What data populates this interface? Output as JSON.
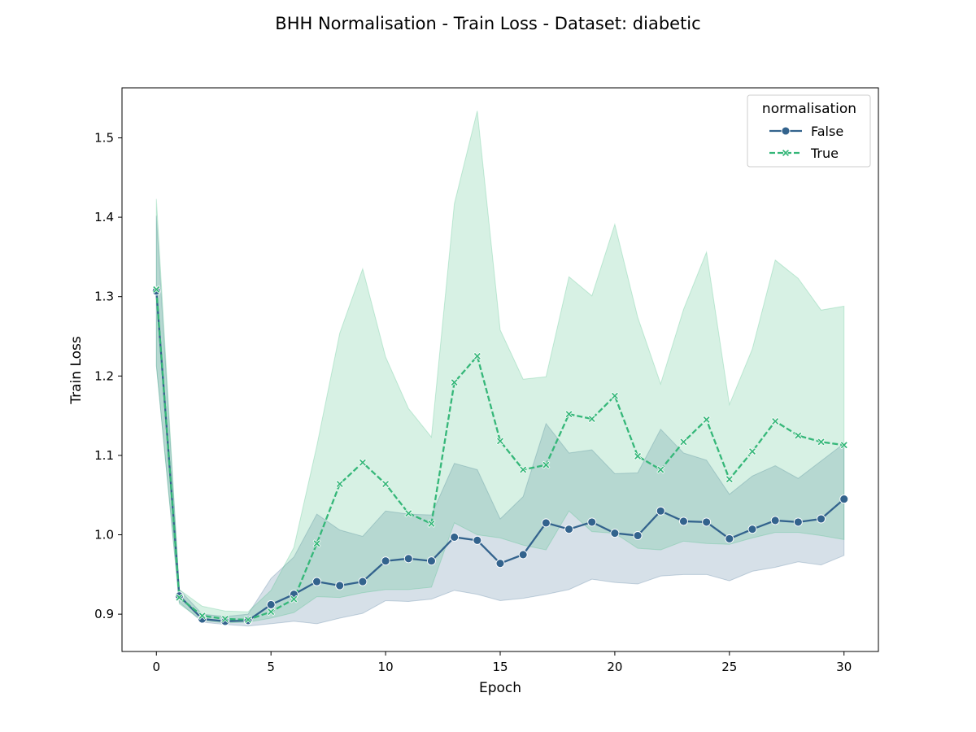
{
  "chart_data": {
    "type": "line",
    "title": "BHH Normalisation - Train Loss - Dataset: diabetic",
    "xlabel": "Epoch",
    "ylabel": "Train Loss",
    "xlim": [
      -1.5,
      31.5
    ],
    "ylim": [
      0.853,
      1.563
    ],
    "xticks": [
      0,
      5,
      10,
      15,
      20,
      25,
      30
    ],
    "yticks": [
      0.9,
      1.0,
      1.1,
      1.2,
      1.3,
      1.4,
      1.5
    ],
    "xtick_labels": [
      "0",
      "5",
      "10",
      "15",
      "20",
      "25",
      "30"
    ],
    "ytick_labels": [
      "0.9",
      "1.0",
      "1.1",
      "1.2",
      "1.3",
      "1.4",
      "1.5"
    ],
    "grid": false,
    "legend": {
      "title": "normalisation",
      "placement": "top-right"
    },
    "x": [
      0,
      1,
      2,
      3,
      4,
      5,
      6,
      7,
      8,
      9,
      10,
      11,
      12,
      13,
      14,
      15,
      16,
      17,
      18,
      19,
      20,
      21,
      22,
      23,
      24,
      25,
      26,
      27,
      28,
      29,
      30
    ],
    "series": [
      {
        "name": "False",
        "color": "#33638d",
        "line_style": "solid",
        "marker": "circle",
        "values": [
          1.307,
          0.923,
          0.894,
          0.891,
          0.892,
          0.912,
          0.925,
          0.941,
          0.936,
          0.941,
          0.967,
          0.97,
          0.967,
          0.997,
          0.993,
          0.964,
          0.975,
          1.015,
          1.007,
          1.016,
          1.002,
          0.999,
          1.03,
          1.017,
          1.016,
          0.995,
          1.007,
          1.018,
          1.016,
          1.02,
          1.045
        ],
        "ci_lower": [
          1.213,
          0.915,
          0.89,
          0.887,
          0.885,
          0.888,
          0.891,
          0.888,
          0.895,
          0.901,
          0.917,
          0.916,
          0.919,
          0.93,
          0.925,
          0.917,
          0.92,
          0.925,
          0.931,
          0.944,
          0.94,
          0.938,
          0.948,
          0.95,
          0.95,
          0.942,
          0.954,
          0.959,
          0.966,
          0.962,
          0.974
        ],
        "ci_upper": [
          1.402,
          0.931,
          0.9,
          0.897,
          0.9,
          0.945,
          0.972,
          1.026,
          1.006,
          0.998,
          1.03,
          1.026,
          1.025,
          1.09,
          1.082,
          1.02,
          1.048,
          1.14,
          1.103,
          1.107,
          1.077,
          1.078,
          1.133,
          1.103,
          1.094,
          1.051,
          1.074,
          1.087,
          1.071,
          1.093,
          1.115
        ],
        "fill_color": "#d7e0e8"
      },
      {
        "name": "True",
        "color": "#35b779",
        "line_style": "dashed",
        "marker": "x",
        "values": [
          1.309,
          0.921,
          0.898,
          0.894,
          0.893,
          0.903,
          0.919,
          0.989,
          1.064,
          1.091,
          1.064,
          1.027,
          1.014,
          1.192,
          1.225,
          1.118,
          1.082,
          1.088,
          1.152,
          1.146,
          1.175,
          1.099,
          1.082,
          1.117,
          1.145,
          1.07,
          1.105,
          1.143,
          1.125,
          1.117,
          1.113
        ],
        "ci_lower": [
          1.213,
          0.913,
          0.892,
          0.889,
          0.89,
          0.895,
          0.902,
          0.922,
          0.921,
          0.927,
          0.931,
          0.931,
          0.934,
          1.015,
          1.0,
          0.996,
          0.987,
          0.981,
          1.03,
          1.004,
          1.002,
          0.983,
          0.981,
          0.992,
          0.989,
          0.988,
          0.996,
          1.003,
          1.003,
          0.999,
          0.994
        ],
        "ci_upper": [
          1.423,
          0.931,
          0.91,
          0.904,
          0.903,
          0.93,
          0.984,
          1.112,
          1.254,
          1.335,
          1.224,
          1.159,
          1.123,
          1.417,
          1.534,
          1.258,
          1.196,
          1.199,
          1.325,
          1.301,
          1.391,
          1.274,
          1.19,
          1.284,
          1.356,
          1.164,
          1.234,
          1.346,
          1.323,
          1.283,
          1.288
        ],
        "fill_color": "#d4f1e3"
      }
    ],
    "overlap_color": "#b2d5cf"
  }
}
